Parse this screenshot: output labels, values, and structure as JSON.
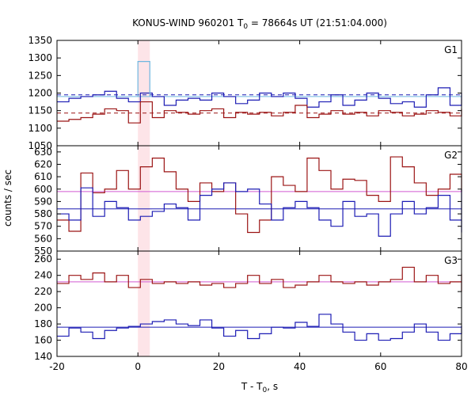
{
  "chart_data": {
    "type": "line",
    "step": true,
    "title": "KONUS-WIND 960201 T0 = 78664s UT (21:51:04.000)",
    "title_parts": {
      "pre": "KONUS-WIND 960201 T",
      "sub": "0",
      "post": " = 78664s UT (21:51:04.000)"
    },
    "xlabel": "T - T0, s",
    "xlabel_parts": {
      "pre": "T - T",
      "sub": "0",
      "post": ", s"
    },
    "ylabel": "counts / sec",
    "xlim": [
      -20,
      80
    ],
    "xticks": [
      -20,
      0,
      20,
      40,
      60,
      80
    ],
    "bin_width_s": 2.944,
    "highlight_interval": [
      0,
      2.944
    ],
    "colors": {
      "background": "#ffffff",
      "highlight": "#fde4e8",
      "dark_blue": "#1c1cb4",
      "dark_red": "#9b1414",
      "light_blue": "#6fb7e0",
      "magenta": "#d25ad2"
    },
    "panels": [
      {
        "label": "G1",
        "ylim": [
          1050,
          1350
        ],
        "yticks": [
          1050,
          1100,
          1150,
          1200,
          1250,
          1300,
          1350
        ],
        "series": [
          {
            "role": "blue",
            "values": [
              1175,
              1185,
              1190,
              1195,
              1205,
              1185,
              1175,
              1200,
              1190,
              1165,
              1180,
              1185,
              1180,
              1200,
              1190,
              1170,
              1180,
              1200,
              1190,
              1200,
              1185,
              1160,
              1175,
              1195,
              1165,
              1180,
              1200,
              1185,
              1170,
              1175,
              1160,
              1195,
              1215,
              1165,
              1175,
              1170,
              1200,
              1180,
              1175
            ]
          },
          {
            "role": "red",
            "values": [
              1120,
              1125,
              1130,
              1140,
              1155,
              1150,
              1115,
              1175,
              1130,
              1150,
              1145,
              1140,
              1150,
              1155,
              1130,
              1145,
              1140,
              1145,
              1135,
              1145,
              1165,
              1130,
              1140,
              1150,
              1140,
              1145,
              1135,
              1150,
              1145,
              1135,
              1140,
              1150,
              1145,
              1135,
              1145,
              1135,
              1155,
              1140,
              1145
            ]
          },
          {
            "role": "highlight",
            "values": [
              1290
            ]
          }
        ],
        "baselines": [
          {
            "role": "blue_solid",
            "value": 1190
          },
          {
            "role": "blue_dashed",
            "value": 1195
          },
          {
            "role": "red_dashed",
            "value": 1143
          }
        ]
      },
      {
        "label": "G2",
        "ylim": [
          550,
          635
        ],
        "yticks": [
          550,
          560,
          570,
          580,
          590,
          600,
          610,
          620,
          630
        ],
        "series": [
          {
            "role": "red",
            "values": [
              575,
              566,
              613,
              597,
              600,
              615,
              600,
              618,
              625,
              614,
              600,
              590,
              605,
              598,
              605,
              580,
              565,
              575,
              610,
              603,
              598,
              625,
              615,
              600,
              608,
              607,
              595,
              590,
              626,
              618,
              605,
              595,
              600,
              612,
              605,
              600,
              606,
              598,
              600
            ]
          },
          {
            "role": "blue",
            "values": [
              580,
              575,
              601,
              578,
              590,
              585,
              575,
              578,
              582,
              588,
              585,
              575,
              595,
              600,
              605,
              598,
              600,
              588,
              575,
              585,
              590,
              585,
              575,
              570,
              590,
              578,
              580,
              562,
              580,
              590,
              580,
              585,
              595,
              575,
              585,
              585,
              565,
              590,
              600
            ]
          }
        ],
        "baselines": [
          {
            "role": "magenta",
            "value": 598
          },
          {
            "role": "blue",
            "value": 584
          }
        ]
      },
      {
        "label": "G3",
        "ylim": [
          140,
          270
        ],
        "yticks": [
          140,
          160,
          180,
          200,
          220,
          240,
          260
        ],
        "series": [
          {
            "role": "red",
            "values": [
              230,
              240,
              235,
              243,
              232,
              240,
              225,
              235,
              230,
              232,
              230,
              232,
              228,
              230,
              225,
              230,
              240,
              230,
              235,
              225,
              228,
              232,
              240,
              232,
              230,
              232,
              228,
              232,
              235,
              250,
              232,
              240,
              230,
              232,
              220,
              230,
              232,
              242,
              235
            ]
          },
          {
            "role": "blue",
            "values": [
              165,
              175,
              170,
              162,
              172,
              175,
              177,
              180,
              183,
              185,
              180,
              178,
              185,
              175,
              165,
              172,
              162,
              168,
              176,
              175,
              182,
              177,
              192,
              180,
              170,
              160,
              168,
              160,
              162,
              170,
              180,
              170,
              160,
              168,
              178,
              172,
              175,
              170,
              178
            ]
          }
        ],
        "baselines": [
          {
            "role": "magenta",
            "value": 232
          },
          {
            "role": "blue",
            "value": 176
          }
        ]
      }
    ]
  }
}
